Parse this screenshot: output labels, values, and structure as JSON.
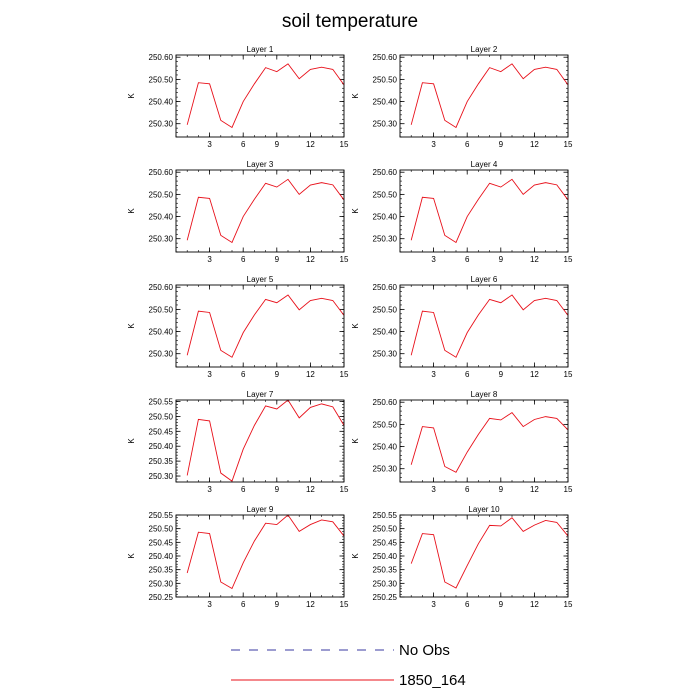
{
  "figure": {
    "title": "soil temperature"
  },
  "legend": {
    "position": "bottom",
    "items": [
      {
        "label": "No Obs",
        "color": "#3a3aa0",
        "style": "dashed"
      },
      {
        "label": "1850_164",
        "color": "#e8101a",
        "style": "solid"
      }
    ]
  },
  "chart_data": [
    {
      "type": "line",
      "title": "Layer 1",
      "ylabel": "K",
      "xlim": [
        0,
        15
      ],
      "ylim": [
        250.24,
        250.61
      ],
      "xticks": [
        3,
        6,
        9,
        12,
        15
      ],
      "yticks": [
        "250.30",
        "250.40",
        "250.50",
        "250.60"
      ],
      "x": [
        1,
        2,
        3,
        4,
        5,
        6,
        7,
        8,
        9,
        10,
        11,
        12,
        13,
        14,
        15
      ],
      "series": [
        {
          "name": "1850_164",
          "color": "#e8101a",
          "values": [
            250.295,
            250.485,
            250.48,
            250.315,
            250.283,
            250.4,
            250.48,
            250.553,
            250.535,
            250.57,
            250.503,
            250.545,
            250.555,
            250.545,
            250.475
          ]
        }
      ]
    },
    {
      "type": "line",
      "title": "Layer 2",
      "ylabel": "K",
      "xlim": [
        0,
        15
      ],
      "ylim": [
        250.24,
        250.61
      ],
      "xticks": [
        3,
        6,
        9,
        12,
        15
      ],
      "yticks": [
        "250.30",
        "250.40",
        "250.50",
        "250.60"
      ],
      "x": [
        1,
        2,
        3,
        4,
        5,
        6,
        7,
        8,
        9,
        10,
        11,
        12,
        13,
        14,
        15
      ],
      "series": [
        {
          "name": "1850_164",
          "color": "#e8101a",
          "values": [
            250.295,
            250.485,
            250.48,
            250.315,
            250.283,
            250.4,
            250.48,
            250.553,
            250.535,
            250.57,
            250.503,
            250.545,
            250.555,
            250.545,
            250.475
          ]
        }
      ]
    },
    {
      "type": "line",
      "title": "Layer 3",
      "ylabel": "K",
      "xlim": [
        0,
        15
      ],
      "ylim": [
        250.24,
        250.61
      ],
      "xticks": [
        3,
        6,
        9,
        12,
        15
      ],
      "yticks": [
        "250.30",
        "250.40",
        "250.50",
        "250.60"
      ],
      "x": [
        1,
        2,
        3,
        4,
        5,
        6,
        7,
        8,
        9,
        10,
        11,
        12,
        13,
        14,
        15
      ],
      "series": [
        {
          "name": "1850_164",
          "color": "#e8101a",
          "values": [
            250.293,
            250.487,
            250.482,
            250.315,
            250.283,
            250.4,
            250.478,
            250.55,
            250.533,
            250.568,
            250.5,
            250.542,
            250.553,
            250.543,
            250.475
          ]
        }
      ]
    },
    {
      "type": "line",
      "title": "Layer 4",
      "ylabel": "K",
      "xlim": [
        0,
        15
      ],
      "ylim": [
        250.24,
        250.61
      ],
      "xticks": [
        3,
        6,
        9,
        12,
        15
      ],
      "yticks": [
        "250.30",
        "250.40",
        "250.50",
        "250.60"
      ],
      "x": [
        1,
        2,
        3,
        4,
        5,
        6,
        7,
        8,
        9,
        10,
        11,
        12,
        13,
        14,
        15
      ],
      "series": [
        {
          "name": "1850_164",
          "color": "#e8101a",
          "values": [
            250.293,
            250.487,
            250.482,
            250.315,
            250.283,
            250.4,
            250.478,
            250.55,
            250.533,
            250.568,
            250.5,
            250.542,
            250.553,
            250.543,
            250.475
          ]
        }
      ]
    },
    {
      "type": "line",
      "title": "Layer 5",
      "ylabel": "K",
      "xlim": [
        0,
        15
      ],
      "ylim": [
        250.24,
        250.61
      ],
      "xticks": [
        3,
        6,
        9,
        12,
        15
      ],
      "yticks": [
        "250.30",
        "250.40",
        "250.50",
        "250.60"
      ],
      "x": [
        1,
        2,
        3,
        4,
        5,
        6,
        7,
        8,
        9,
        10,
        11,
        12,
        13,
        14,
        15
      ],
      "series": [
        {
          "name": "1850_164",
          "color": "#e8101a",
          "values": [
            250.293,
            250.492,
            250.486,
            250.315,
            250.284,
            250.395,
            250.475,
            250.545,
            250.53,
            250.565,
            250.498,
            250.54,
            250.55,
            250.54,
            250.473
          ]
        }
      ]
    },
    {
      "type": "line",
      "title": "Layer 6",
      "ylabel": "K",
      "xlim": [
        0,
        15
      ],
      "ylim": [
        250.24,
        250.61
      ],
      "xticks": [
        3,
        6,
        9,
        12,
        15
      ],
      "yticks": [
        "250.30",
        "250.40",
        "250.50",
        "250.60"
      ],
      "x": [
        1,
        2,
        3,
        4,
        5,
        6,
        7,
        8,
        9,
        10,
        11,
        12,
        13,
        14,
        15
      ],
      "series": [
        {
          "name": "1850_164",
          "color": "#e8101a",
          "values": [
            250.293,
            250.492,
            250.486,
            250.315,
            250.284,
            250.395,
            250.475,
            250.545,
            250.53,
            250.565,
            250.498,
            250.54,
            250.55,
            250.54,
            250.473
          ]
        }
      ]
    },
    {
      "type": "line",
      "title": "Layer 7",
      "ylabel": "K",
      "xlim": [
        0,
        15
      ],
      "ylim": [
        250.28,
        250.555
      ],
      "xticks": [
        3,
        6,
        9,
        12,
        15
      ],
      "yticks": [
        "250.30",
        "250.35",
        "250.40",
        "250.45",
        "250.50",
        "250.55"
      ],
      "x": [
        1,
        2,
        3,
        4,
        5,
        6,
        7,
        8,
        9,
        10,
        11,
        12,
        13,
        14,
        15
      ],
      "series": [
        {
          "name": "1850_164",
          "color": "#e8101a",
          "values": [
            250.302,
            250.49,
            250.485,
            250.31,
            250.283,
            250.39,
            250.47,
            250.535,
            250.525,
            250.555,
            250.495,
            250.53,
            250.542,
            250.532,
            250.47
          ]
        }
      ]
    },
    {
      "type": "line",
      "title": "Layer 8",
      "ylabel": "K",
      "xlim": [
        0,
        15
      ],
      "ylim": [
        250.24,
        250.61
      ],
      "xticks": [
        3,
        6,
        9,
        12,
        15
      ],
      "yticks": [
        "250.30",
        "250.40",
        "250.50",
        "250.60"
      ],
      "x": [
        1,
        2,
        3,
        4,
        5,
        6,
        7,
        8,
        9,
        10,
        11,
        12,
        13,
        14,
        15
      ],
      "series": [
        {
          "name": "1850_164",
          "color": "#e8101a",
          "values": [
            250.318,
            250.49,
            250.484,
            250.31,
            250.284,
            250.375,
            250.455,
            250.527,
            250.52,
            250.553,
            250.49,
            250.522,
            250.535,
            250.527,
            250.475
          ]
        }
      ]
    },
    {
      "type": "line",
      "title": "Layer 9",
      "ylabel": "K",
      "xlim": [
        0,
        15
      ],
      "ylim": [
        250.25,
        250.55
      ],
      "xticks": [
        3,
        6,
        9,
        12,
        15
      ],
      "yticks": [
        "250.25",
        "250.30",
        "250.35",
        "250.40",
        "250.45",
        "250.50",
        "250.55"
      ],
      "x": [
        1,
        2,
        3,
        4,
        5,
        6,
        7,
        8,
        9,
        10,
        11,
        12,
        13,
        14,
        15
      ],
      "series": [
        {
          "name": "1850_164",
          "color": "#e8101a",
          "values": [
            250.338,
            250.487,
            250.482,
            250.305,
            250.281,
            250.375,
            250.455,
            250.52,
            250.515,
            250.55,
            250.49,
            250.515,
            250.532,
            250.525,
            250.473
          ]
        }
      ]
    },
    {
      "type": "line",
      "title": "Layer 10",
      "ylabel": "K",
      "xlim": [
        0,
        15
      ],
      "ylim": [
        250.25,
        250.55
      ],
      "xticks": [
        3,
        6,
        9,
        12,
        15
      ],
      "yticks": [
        "250.25",
        "250.30",
        "250.35",
        "250.40",
        "250.45",
        "250.50",
        "250.55"
      ],
      "x": [
        1,
        2,
        3,
        4,
        5,
        6,
        7,
        8,
        9,
        10,
        11,
        12,
        13,
        14,
        15
      ],
      "series": [
        {
          "name": "1850_164",
          "color": "#e8101a",
          "values": [
            250.372,
            250.482,
            250.478,
            250.305,
            250.283,
            250.365,
            250.445,
            250.512,
            250.51,
            250.54,
            250.49,
            250.513,
            250.53,
            250.523,
            250.473
          ]
        }
      ]
    }
  ]
}
